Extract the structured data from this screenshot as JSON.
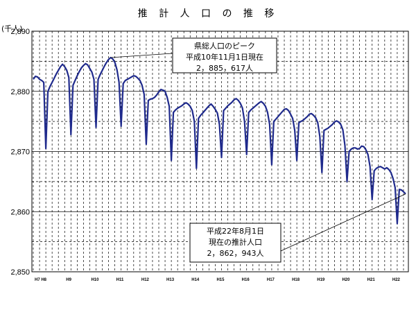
{
  "chart_data": {
    "type": "line",
    "title": "推 計 人 口 の 推 移",
    "ylabel": "(千人)",
    "xlabel": "",
    "ylim": [
      2850,
      2890
    ],
    "yticks": [
      "2,850",
      "2,860",
      "2,870",
      "2,880",
      "2,890"
    ],
    "ytick_values": [
      2850,
      2860,
      2870,
      2880,
      2890
    ],
    "grid": true,
    "legend": "none",
    "line_color": "#1f2a8c",
    "x_period": {
      "start": "1995-10",
      "end": "2010-08",
      "step": "month"
    },
    "xtick_labels": [
      "H7 H8",
      "H9",
      "H10",
      "H11",
      "H12",
      "H13",
      "H14",
      "H15",
      "H16",
      "H17",
      "H18",
      "H19",
      "H20",
      "H21",
      "H22"
    ],
    "series": [
      {
        "yearly_profiles": [
          {
            "year": "H7",
            "values": [
              2882.0,
              2882.5,
              2882.4
            ]
          },
          {
            "year": "H8",
            "values": [
              2882.0,
              2881.8,
              2881.5,
              2870.5,
              2880.0,
              2880.8,
              2881.5,
              2882.2,
              2882.9,
              2883.5,
              2884.1,
              2884.5
            ]
          },
          {
            "year": "H9",
            "values": [
              2884.1,
              2883.5,
              2882.3,
              2872.8,
              2881.0,
              2881.8,
              2882.6,
              2883.3,
              2883.9,
              2884.3,
              2884.6,
              2884.4
            ]
          },
          {
            "year": "H10",
            "values": [
              2883.8,
              2883.2,
              2882.0,
              2874.0,
              2882.0,
              2882.8,
              2883.5,
              2884.2,
              2884.8,
              2885.3,
              2885.617,
              2885.4
            ]
          },
          {
            "year": "H11",
            "values": [
              2884.8,
              2883.6,
              2881.5,
              2874.2,
              2881.3,
              2881.8,
              2882.0,
              2882.2,
              2882.4,
              2882.6,
              2882.5,
              2882.2
            ]
          },
          {
            "year": "H12",
            "values": [
              2881.8,
              2881.0,
              2879.5,
              2871.2,
              2878.5,
              2878.7,
              2878.8,
              2879.0,
              2879.4,
              2879.9,
              2880.3,
              2880.2
            ]
          },
          {
            "year": "H13",
            "values": [
              2880.0,
              2879.0,
              2877.5,
              2868.5,
              2876.5,
              2876.9,
              2877.2,
              2877.4,
              2877.6,
              2877.9,
              2878.1,
              2877.9
            ]
          },
          {
            "year": "H14",
            "values": [
              2877.5,
              2876.8,
              2875.0,
              2867.2,
              2875.5,
              2876.0,
              2876.4,
              2876.8,
              2877.2,
              2877.6,
              2877.9,
              2877.5
            ]
          },
          {
            "year": "H15",
            "values": [
              2877.0,
              2876.4,
              2874.5,
              2869.0,
              2876.8,
              2877.2,
              2877.6,
              2877.9,
              2878.2,
              2878.6,
              2878.8,
              2878.5
            ]
          },
          {
            "year": "H16",
            "values": [
              2878.0,
              2877.2,
              2875.0,
              2869.5,
              2876.5,
              2876.9,
              2877.2,
              2877.5,
              2877.8,
              2878.1,
              2878.3,
              2878.0
            ]
          },
          {
            "year": "H17",
            "values": [
              2877.5,
              2876.5,
              2874.5,
              2867.8,
              2875.0,
              2875.4,
              2875.8,
              2876.2,
              2876.6,
              2877.0,
              2877.1,
              2876.8
            ]
          },
          {
            "year": "H18",
            "values": [
              2876.2,
              2875.5,
              2873.5,
              2868.5,
              2874.8,
              2875.0,
              2875.2,
              2875.5,
              2875.8,
              2876.2,
              2876.3,
              2876.0
            ]
          },
          {
            "year": "H19",
            "values": [
              2875.6,
              2874.8,
              2872.5,
              2866.5,
              2873.5,
              2873.7,
              2873.9,
              2874.2,
              2874.5,
              2874.9,
              2875.1,
              2874.9
            ]
          },
          {
            "year": "H20",
            "values": [
              2874.5,
              2873.6,
              2871.0,
              2865.0,
              2870.0,
              2870.4,
              2870.6,
              2870.6,
              2870.4,
              2870.5,
              2870.9,
              2870.8
            ]
          },
          {
            "year": "H21",
            "values": [
              2870.3,
              2869.5,
              2867.5,
              2862.0,
              2866.8,
              2867.2,
              2867.4,
              2867.5,
              2867.3,
              2867.1,
              2867.3,
              2867.0
            ]
          },
          {
            "year": "H22",
            "values": [
              2866.5,
              2865.5,
              2864.0,
              2858.0,
              2863.7,
              2863.6,
              2863.3,
              2862.943
            ]
          }
        ]
      }
    ],
    "annotations": [
      {
        "lines": [
          "県総人口のピーク",
          "平成10年11月1日現在",
          "2，885，617人"
        ],
        "points_to": {
          "year": "H10",
          "month_index": 10
        }
      },
      {
        "lines": [
          "平成22年8月1日",
          "現在の推計人口",
          "2，862，943人"
        ],
        "points_to": {
          "year": "H22",
          "month_index": 7
        }
      }
    ]
  }
}
